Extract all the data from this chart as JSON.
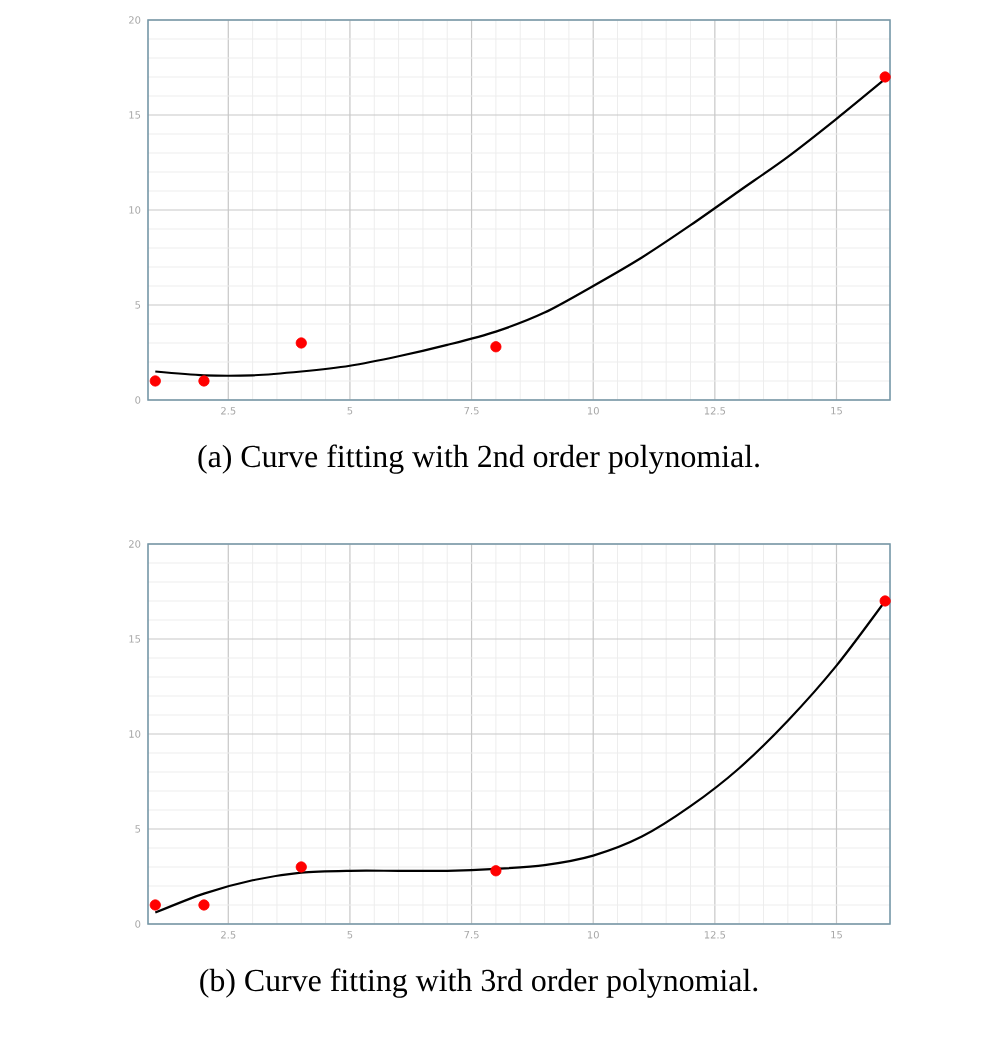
{
  "chart_data": [
    {
      "type": "scatter",
      "title": "(a) Curve fitting with 2nd order polynomial.",
      "xlim": [
        0.85,
        16.1
      ],
      "ylim": [
        0,
        20
      ],
      "xticks": [
        2.5,
        5,
        7.5,
        10,
        12.5,
        15
      ],
      "yticks": [
        0,
        5,
        10,
        15,
        20
      ],
      "grid": true,
      "series": [
        {
          "marker": "circle",
          "color": "#ff0000",
          "x": [
            1,
            2,
            4,
            8,
            16
          ],
          "values": [
            1,
            1,
            3,
            2.8,
            17
          ]
        },
        {
          "type": "line",
          "marker": "none",
          "color": "#000000",
          "x": [
            1,
            2,
            3,
            4,
            5,
            6,
            7,
            8,
            9,
            10,
            11,
            12,
            13,
            14,
            15,
            16
          ],
          "values": [
            1.5,
            1.3,
            1.3,
            1.5,
            1.8,
            2.3,
            2.9,
            3.6,
            4.6,
            6,
            7.5,
            9.2,
            11,
            12.8,
            14.8,
            16.9
          ]
        }
      ]
    },
    {
      "type": "scatter",
      "title": "(b) Curve fitting with 3rd order polynomial.",
      "xlim": [
        0.85,
        16.1
      ],
      "ylim": [
        0,
        20
      ],
      "xticks": [
        2.5,
        5,
        7.5,
        10,
        12.5,
        15
      ],
      "yticks": [
        0,
        5,
        10,
        15,
        20
      ],
      "grid": true,
      "series": [
        {
          "marker": "circle",
          "color": "#ff0000",
          "x": [
            1,
            2,
            4,
            8,
            16
          ],
          "values": [
            1,
            1,
            3,
            2.8,
            17
          ]
        },
        {
          "type": "line",
          "marker": "none",
          "color": "#000000",
          "x": [
            1,
            2,
            3,
            4,
            5,
            6,
            7,
            8,
            9,
            10,
            11,
            12,
            13,
            14,
            15,
            16
          ],
          "values": [
            0.6,
            1.6,
            2.3,
            2.7,
            2.8,
            2.8,
            2.8,
            2.9,
            3.1,
            3.6,
            4.6,
            6.2,
            8.2,
            10.7,
            13.6,
            17
          ]
        }
      ]
    }
  ]
}
